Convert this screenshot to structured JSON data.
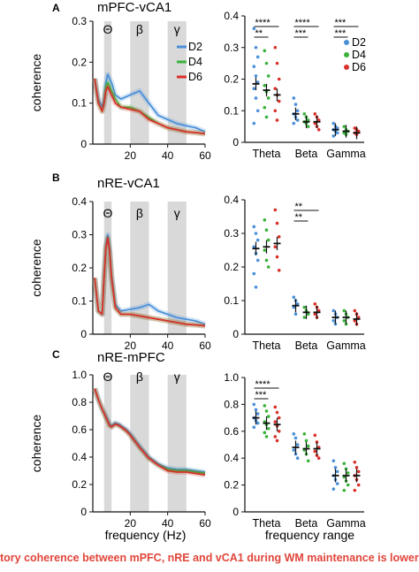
{
  "figure": {
    "caption": "tory coherence between mPFC, nRE and vCA1 during WM maintenance is lower",
    "colors": {
      "D2": "#4a90d9",
      "D4": "#3ab23a",
      "D6": "#d9302a",
      "band": "#d9d9d9",
      "axis": "#111111"
    }
  },
  "chart_data": [
    {
      "panel": "A",
      "type": "line",
      "title": "mPFC-vCA1",
      "xlabel": "",
      "ylabel": "coherence",
      "xlim": [
        0,
        60
      ],
      "ylim": [
        0,
        0.3
      ],
      "xticks": [
        "20",
        "40",
        "60"
      ],
      "yticks": [
        "0",
        "0.1",
        "0.2",
        "0.3"
      ],
      "bands": [
        {
          "label": "Θ",
          "range": [
            6,
            10
          ]
        },
        {
          "label": "β",
          "range": [
            20,
            30
          ]
        },
        {
          "label": "γ",
          "range": [
            40,
            50
          ]
        }
      ],
      "legend": [
        "D2",
        "D4",
        "D6"
      ],
      "series": [
        {
          "name": "D2",
          "x": [
            1,
            3,
            5,
            6,
            7,
            8,
            9,
            10,
            12,
            15,
            20,
            25,
            30,
            35,
            40,
            45,
            50,
            55,
            60
          ],
          "y": [
            0.16,
            0.11,
            0.09,
            0.11,
            0.15,
            0.17,
            0.16,
            0.15,
            0.12,
            0.11,
            0.12,
            0.13,
            0.1,
            0.07,
            0.06,
            0.05,
            0.045,
            0.04,
            0.03
          ]
        },
        {
          "name": "D4",
          "x": [
            1,
            3,
            5,
            6,
            7,
            8,
            9,
            10,
            12,
            15,
            20,
            25,
            30,
            35,
            40,
            45,
            50,
            55,
            60
          ],
          "y": [
            0.16,
            0.1,
            0.08,
            0.1,
            0.14,
            0.15,
            0.14,
            0.13,
            0.11,
            0.09,
            0.09,
            0.08,
            0.065,
            0.05,
            0.04,
            0.035,
            0.03,
            0.028,
            0.025
          ]
        },
        {
          "name": "D6",
          "x": [
            1,
            3,
            5,
            6,
            7,
            8,
            9,
            10,
            12,
            15,
            20,
            25,
            30,
            35,
            40,
            45,
            50,
            55,
            60
          ],
          "y": [
            0.16,
            0.1,
            0.08,
            0.1,
            0.13,
            0.14,
            0.13,
            0.12,
            0.1,
            0.09,
            0.085,
            0.08,
            0.06,
            0.05,
            0.04,
            0.035,
            0.03,
            0.028,
            0.025
          ]
        }
      ]
    },
    {
      "panel": "A",
      "type": "scatter",
      "title": "",
      "xlabel": "",
      "ylabel": "",
      "categories": [
        "Theta",
        "Beta",
        "Gamma"
      ],
      "ylim": [
        0,
        0.4
      ],
      "yticks": [
        "0",
        "0.1",
        "0.2",
        "0.3",
        "0.4"
      ],
      "legend": [
        "D2",
        "D4",
        "D6"
      ],
      "legend_position": "top-right",
      "means": {
        "D2": [
          0.185,
          0.09,
          0.04
        ],
        "D4": [
          0.165,
          0.065,
          0.035
        ],
        "D6": [
          0.15,
          0.065,
          0.03
        ]
      },
      "points": {
        "D2": [
          [
            0.36,
            0.3,
            0.27,
            0.24,
            0.21,
            0.19,
            0.17,
            0.14,
            0.1,
            0.06
          ],
          [
            0.14,
            0.12,
            0.1,
            0.09,
            0.08,
            0.07,
            0.06
          ],
          [
            0.06,
            0.05,
            0.045,
            0.04,
            0.035,
            0.03,
            0.02
          ]
        ],
        "D4": [
          [
            0.29,
            0.25,
            0.21,
            0.18,
            0.16,
            0.14,
            0.11,
            0.08
          ],
          [
            0.09,
            0.08,
            0.07,
            0.065,
            0.06,
            0.05
          ],
          [
            0.05,
            0.04,
            0.035,
            0.03,
            0.025
          ]
        ],
        "D6": [
          [
            0.3,
            0.25,
            0.2,
            0.17,
            0.15,
            0.13,
            0.1,
            0.07
          ],
          [
            0.09,
            0.08,
            0.07,
            0.06,
            0.05,
            0.04
          ],
          [
            0.045,
            0.04,
            0.035,
            0.03,
            0.025
          ]
        ]
      },
      "significance": [
        {
          "label": "****",
          "category": 0,
          "span": "D2-D6"
        },
        {
          "label": "**",
          "category": 0,
          "span": "D2-D4"
        },
        {
          "label": "****",
          "category": 1,
          "span": "D2-D6"
        },
        {
          "label": "***",
          "category": 1,
          "span": "D2-D4"
        },
        {
          "label": "***",
          "category": 2,
          "span": "D2-D6"
        },
        {
          "label": "***",
          "category": 2,
          "span": "D2-D4"
        }
      ]
    },
    {
      "panel": "B",
      "type": "line",
      "title": "nRE-vCA1",
      "xlabel": "",
      "ylabel": "coherence",
      "xlim": [
        0,
        60
      ],
      "ylim": [
        0,
        0.4
      ],
      "xticks": [
        "20",
        "40",
        "60"
      ],
      "yticks": [
        "0",
        "0.1",
        "0.2",
        "0.3",
        "0.4"
      ],
      "bands": [
        {
          "label": "Θ",
          "range": [
            6,
            10
          ]
        },
        {
          "label": "β",
          "range": [
            20,
            30
          ]
        },
        {
          "label": "γ",
          "range": [
            40,
            50
          ]
        }
      ],
      "series": [
        {
          "name": "D2",
          "x": [
            1,
            3,
            5,
            6,
            7,
            8,
            9,
            10,
            12,
            15,
            20,
            25,
            30,
            35,
            40,
            45,
            50,
            55,
            60
          ],
          "y": [
            0.17,
            0.07,
            0.06,
            0.18,
            0.27,
            0.3,
            0.26,
            0.18,
            0.09,
            0.07,
            0.075,
            0.08,
            0.09,
            0.07,
            0.06,
            0.05,
            0.045,
            0.04,
            0.03
          ]
        },
        {
          "name": "D4",
          "x": [
            1,
            3,
            5,
            6,
            7,
            8,
            9,
            10,
            12,
            15,
            20,
            25,
            30,
            35,
            40,
            45,
            50,
            55,
            60
          ],
          "y": [
            0.17,
            0.07,
            0.06,
            0.17,
            0.26,
            0.29,
            0.25,
            0.17,
            0.08,
            0.06,
            0.06,
            0.055,
            0.05,
            0.045,
            0.04,
            0.035,
            0.03,
            0.028,
            0.025
          ]
        },
        {
          "name": "D6",
          "x": [
            1,
            3,
            5,
            6,
            7,
            8,
            9,
            10,
            12,
            15,
            20,
            25,
            30,
            35,
            40,
            45,
            50,
            55,
            60
          ],
          "y": [
            0.17,
            0.07,
            0.06,
            0.17,
            0.26,
            0.29,
            0.25,
            0.17,
            0.08,
            0.06,
            0.06,
            0.055,
            0.05,
            0.045,
            0.04,
            0.035,
            0.03,
            0.028,
            0.025
          ]
        }
      ]
    },
    {
      "panel": "B",
      "type": "scatter",
      "title": "",
      "xlabel": "",
      "ylabel": "",
      "categories": [
        "Theta",
        "Beta",
        "Gamma"
      ],
      "ylim": [
        0,
        0.4
      ],
      "yticks": [
        "0",
        "0.1",
        "0.2",
        "0.3",
        "0.4"
      ],
      "means": {
        "D2": [
          0.255,
          0.085,
          0.05
        ],
        "D4": [
          0.26,
          0.065,
          0.05
        ],
        "D6": [
          0.27,
          0.065,
          0.045
        ]
      },
      "points": {
        "D2": [
          [
            0.32,
            0.3,
            0.28,
            0.26,
            0.24,
            0.22,
            0.18,
            0.14
          ],
          [
            0.11,
            0.1,
            0.09,
            0.08,
            0.06
          ],
          [
            0.07,
            0.06,
            0.05,
            0.04,
            0.03
          ]
        ],
        "D4": [
          [
            0.34,
            0.31,
            0.28,
            0.25,
            0.22,
            0.2
          ],
          [
            0.08,
            0.07,
            0.06,
            0.05
          ],
          [
            0.07,
            0.06,
            0.05,
            0.04,
            0.03
          ]
        ],
        "D6": [
          [
            0.37,
            0.33,
            0.29,
            0.26,
            0.23,
            0.19
          ],
          [
            0.09,
            0.08,
            0.07,
            0.06,
            0.05
          ],
          [
            0.07,
            0.06,
            0.05,
            0.04,
            0.03
          ]
        ]
      },
      "significance": [
        {
          "label": "**",
          "category": 1,
          "span": "D2-D6"
        },
        {
          "label": "**",
          "category": 1,
          "span": "D2-D4"
        }
      ]
    },
    {
      "panel": "C",
      "type": "line",
      "title": "nRE-mPFC",
      "xlabel": "frequency (Hz)",
      "ylabel": "coherence",
      "xlim": [
        0,
        60
      ],
      "ylim": [
        0,
        1.0
      ],
      "xticks": [
        "20",
        "40",
        "60"
      ],
      "yticks": [
        "0",
        "0.2",
        "0.4",
        "0.6",
        "0.8",
        "1.0"
      ],
      "bands": [
        {
          "label": "Θ",
          "range": [
            6,
            10
          ]
        },
        {
          "label": "β",
          "range": [
            20,
            30
          ]
        },
        {
          "label": "γ",
          "range": [
            40,
            50
          ]
        }
      ],
      "series": [
        {
          "name": "D2",
          "x": [
            1,
            3,
            5,
            7,
            9,
            10,
            12,
            14,
            16,
            18,
            20,
            25,
            30,
            35,
            40,
            45,
            50,
            55,
            60
          ],
          "y": [
            0.9,
            0.82,
            0.75,
            0.7,
            0.64,
            0.63,
            0.65,
            0.64,
            0.62,
            0.6,
            0.57,
            0.48,
            0.4,
            0.35,
            0.32,
            0.31,
            0.31,
            0.3,
            0.29
          ]
        },
        {
          "name": "D4",
          "x": [
            1,
            3,
            5,
            7,
            9,
            10,
            12,
            14,
            16,
            18,
            20,
            25,
            30,
            35,
            40,
            45,
            50,
            55,
            60
          ],
          "y": [
            0.9,
            0.82,
            0.75,
            0.69,
            0.63,
            0.62,
            0.64,
            0.63,
            0.61,
            0.59,
            0.56,
            0.47,
            0.39,
            0.34,
            0.31,
            0.3,
            0.3,
            0.29,
            0.28
          ]
        },
        {
          "name": "D6",
          "x": [
            1,
            3,
            5,
            7,
            9,
            10,
            12,
            14,
            16,
            18,
            20,
            25,
            30,
            35,
            40,
            45,
            50,
            55,
            60
          ],
          "y": [
            0.9,
            0.82,
            0.75,
            0.69,
            0.63,
            0.62,
            0.64,
            0.63,
            0.61,
            0.59,
            0.56,
            0.47,
            0.39,
            0.34,
            0.3,
            0.29,
            0.29,
            0.28,
            0.27
          ]
        }
      ]
    },
    {
      "panel": "C",
      "type": "scatter",
      "title": "",
      "xlabel": "frequency range",
      "ylabel": "",
      "categories": [
        "Theta",
        "Beta",
        "Gamma"
      ],
      "ylim": [
        0,
        1.0
      ],
      "yticks": [
        "0",
        "0.2",
        "0.4",
        "0.6",
        "0.8",
        "1.0"
      ],
      "means": {
        "D2": [
          0.7,
          0.48,
          0.27
        ],
        "D4": [
          0.66,
          0.47,
          0.27
        ],
        "D6": [
          0.65,
          0.47,
          0.27
        ]
      },
      "points": {
        "D2": [
          [
            0.8,
            0.76,
            0.73,
            0.7,
            0.68,
            0.66,
            0.63
          ],
          [
            0.58,
            0.55,
            0.5,
            0.46,
            0.43,
            0.4
          ],
          [
            0.38,
            0.33,
            0.3,
            0.27,
            0.24,
            0.21,
            0.17
          ]
        ],
        "D4": [
          [
            0.79,
            0.75,
            0.71,
            0.67,
            0.65,
            0.62,
            0.59,
            0.56
          ],
          [
            0.58,
            0.53,
            0.49,
            0.46,
            0.43,
            0.38
          ],
          [
            0.36,
            0.32,
            0.29,
            0.26,
            0.23,
            0.2,
            0.16
          ]
        ],
        "D6": [
          [
            0.78,
            0.74,
            0.7,
            0.67,
            0.64,
            0.6,
            0.56,
            0.53
          ],
          [
            0.57,
            0.52,
            0.48,
            0.45,
            0.42,
            0.4
          ],
          [
            0.37,
            0.33,
            0.3,
            0.27,
            0.24,
            0.2,
            0.16
          ]
        ]
      },
      "significance": [
        {
          "label": "****",
          "category": 0,
          "span": "D2-D6"
        },
        {
          "label": "***",
          "category": 0,
          "span": "D2-D4"
        }
      ]
    }
  ],
  "panel_labels": [
    "A",
    "B",
    "C"
  ]
}
